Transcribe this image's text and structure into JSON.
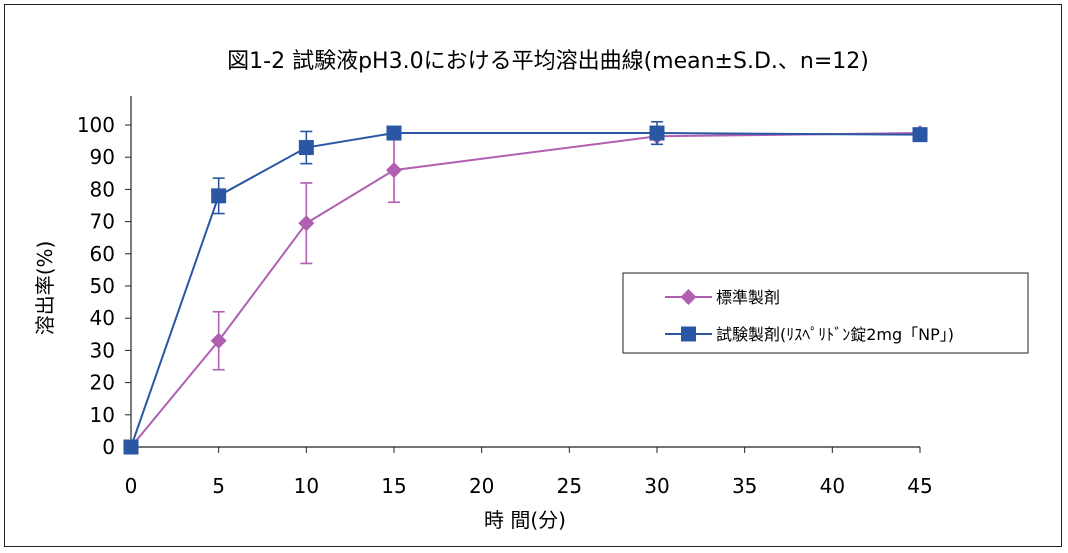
{
  "chart_data": {
    "type": "line",
    "title": "図1-2 試験液pH3.0における平均溶出曲線(mean±S.D.、n=12)",
    "xlabel": "時 間(分)",
    "ylabel": "溶出率(%)",
    "x": [
      0,
      5,
      10,
      15,
      30,
      45
    ],
    "xlim": [
      0,
      45
    ],
    "ylim": [
      0,
      100
    ],
    "x_ticks": [
      0,
      5,
      10,
      15,
      20,
      25,
      30,
      35,
      40,
      45
    ],
    "y_ticks": [
      0,
      10,
      20,
      30,
      40,
      50,
      60,
      70,
      80,
      90,
      100
    ],
    "grid": false,
    "legend_position": "right",
    "series": [
      {
        "name": "標準製剤",
        "color": "#b05fb1",
        "marker": "diamond",
        "values": [
          0,
          33,
          69.5,
          86,
          96.5,
          97.5
        ],
        "sd": [
          0,
          9,
          12.5,
          10,
          0,
          0
        ]
      },
      {
        "name": "試験製剤(ﾘｽﾍﾟﾘﾄﾞﾝ錠2mg「NP」)",
        "color": "#2a56a3",
        "marker": "square",
        "values": [
          0,
          78,
          93,
          97.5,
          97.5,
          97
        ],
        "sd": [
          0,
          5.5,
          5,
          0,
          3.5,
          0
        ]
      }
    ]
  }
}
